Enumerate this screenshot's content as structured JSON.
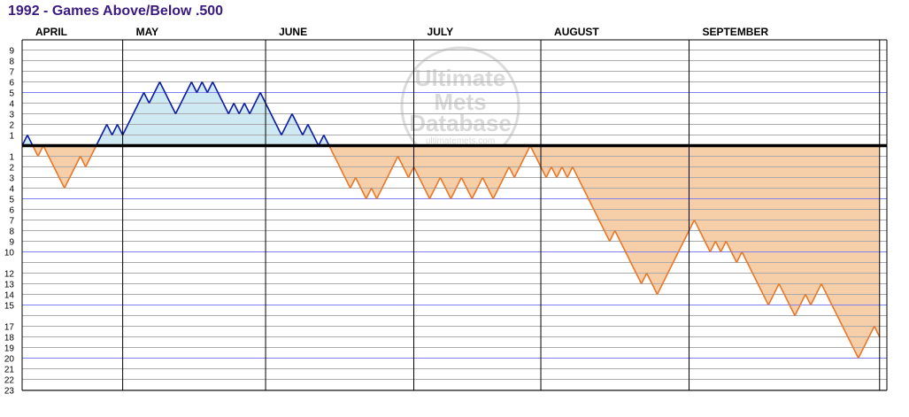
{
  "title": "1992 - Games Above/Below .500",
  "watermark": {
    "line1": "Ultimate",
    "line2": "Mets",
    "line3": "Database",
    "url": "ultimatemets.com"
  },
  "colors": {
    "title": "#3b1a80",
    "above_line": "#0a1aa8",
    "above_fill": "#cfe9f2",
    "below_line": "#e8782a",
    "below_fill": "#f6cfa8",
    "grid_minor": "#aaaaaa",
    "grid_major": "#8080ee",
    "zero_line": "#000000"
  },
  "chart_data": {
    "type": "area",
    "title": "1992 - Games Above/Below .500",
    "xlabel": "",
    "ylabel": "",
    "months": [
      {
        "label": "APRIL",
        "start_game": 0
      },
      {
        "label": "MAY",
        "start_game": 19
      },
      {
        "label": "JUNE",
        "start_game": 46
      },
      {
        "label": "JULY",
        "start_game": 74
      },
      {
        "label": "AUGUST",
        "start_game": 98
      },
      {
        "label": "SEPTEMBER",
        "start_game": 126
      }
    ],
    "season_end_game": 162,
    "y_ticks_above": [
      1,
      2,
      3,
      4,
      5,
      6,
      7,
      8,
      9
    ],
    "y_ticks_below": [
      1,
      2,
      3,
      4,
      5,
      6,
      7,
      8,
      9,
      10,
      12,
      13,
      14,
      15,
      17,
      18,
      19,
      20,
      21,
      22,
      23
    ],
    "y_range": [
      -23,
      9
    ],
    "grid": true,
    "values": [
      0,
      1,
      0,
      -1,
      0,
      -1,
      -2,
      -3,
      -4,
      -3,
      -2,
      -1,
      -2,
      -1,
      0,
      1,
      2,
      1,
      2,
      1,
      2,
      3,
      4,
      5,
      4,
      5,
      6,
      5,
      4,
      3,
      4,
      5,
      6,
      5,
      6,
      5,
      6,
      5,
      4,
      3,
      4,
      3,
      4,
      3,
      4,
      5,
      4,
      3,
      2,
      1,
      2,
      3,
      2,
      1,
      2,
      1,
      0,
      1,
      0,
      -1,
      -2,
      -3,
      -4,
      -3,
      -4,
      -5,
      -4,
      -5,
      -4,
      -3,
      -2,
      -1,
      -2,
      -3,
      -2,
      -3,
      -4,
      -5,
      -4,
      -3,
      -4,
      -5,
      -4,
      -3,
      -4,
      -5,
      -4,
      -3,
      -4,
      -5,
      -4,
      -3,
      -2,
      -3,
      -2,
      -1,
      0,
      -1,
      -2,
      -3,
      -2,
      -3,
      -2,
      -3,
      -2,
      -3,
      -4,
      -5,
      -6,
      -7,
      -8,
      -9,
      -8,
      -9,
      -10,
      -11,
      -12,
      -13,
      -12,
      -13,
      -14,
      -13,
      -12,
      -11,
      -10,
      -9,
      -8,
      -7,
      -8,
      -9,
      -10,
      -9,
      -10,
      -9,
      -10,
      -11,
      -10,
      -11,
      -12,
      -13,
      -14,
      -15,
      -14,
      -13,
      -14,
      -15,
      -16,
      -15,
      -14,
      -15,
      -14,
      -13,
      -14,
      -15,
      -16,
      -17,
      -18,
      -19,
      -20,
      -19,
      -18,
      -17,
      -18
    ]
  }
}
